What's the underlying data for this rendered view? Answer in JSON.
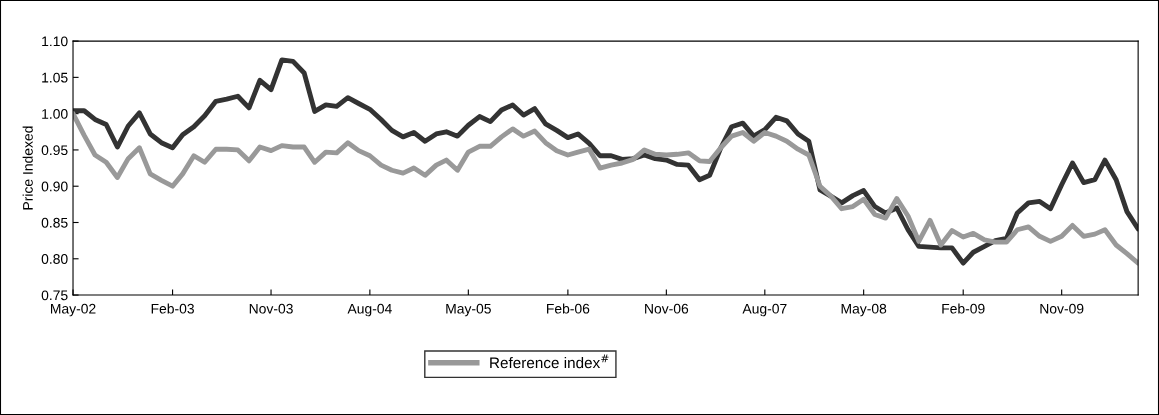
{
  "chart_data": {
    "type": "line",
    "ylabel": "Price Indexed",
    "x": [
      "2002-05",
      "2002-06",
      "2002-07",
      "2002-08",
      "2002-09",
      "2002-10",
      "2002-11",
      "2002-12",
      "2003-01",
      "2003-02",
      "2003-03",
      "2003-04",
      "2003-05",
      "2003-06",
      "2003-07",
      "2003-08",
      "2003-09",
      "2003-10",
      "2003-11",
      "2003-12",
      "2004-01",
      "2004-02",
      "2004-03",
      "2004-04",
      "2004-05",
      "2004-06",
      "2004-07",
      "2004-08",
      "2004-09",
      "2004-10",
      "2004-11",
      "2004-12",
      "2005-01",
      "2005-02",
      "2005-03",
      "2005-04",
      "2005-05",
      "2005-06",
      "2005-07",
      "2005-08",
      "2005-09",
      "2005-10",
      "2005-11",
      "2005-12",
      "2006-01",
      "2006-02",
      "2006-03",
      "2006-04",
      "2006-05",
      "2006-06",
      "2006-07",
      "2006-08",
      "2006-09",
      "2006-10",
      "2006-11",
      "2006-12",
      "2007-01",
      "2007-02",
      "2007-03",
      "2007-04",
      "2007-05",
      "2007-06",
      "2007-07",
      "2007-08",
      "2007-09",
      "2007-10",
      "2007-11",
      "2007-12",
      "2008-01",
      "2008-02",
      "2008-03",
      "2008-04",
      "2008-05",
      "2008-06",
      "2008-07",
      "2008-08",
      "2008-09",
      "2008-10",
      "2008-11",
      "2008-12",
      "2009-01",
      "2009-02",
      "2009-03",
      "2009-04",
      "2009-05",
      "2009-06",
      "2009-07",
      "2009-08",
      "2009-09",
      "2009-10",
      "2009-11",
      "2009-12",
      "2010-01",
      "2010-02",
      "2010-03",
      "2010-04",
      "2010-05",
      "2010-06"
    ],
    "series": [
      {
        "color": "#333333",
        "values": [
          1.004,
          1.004,
          0.992,
          0.985,
          0.954,
          0.983,
          1.001,
          0.972,
          0.96,
          0.953,
          0.971,
          0.982,
          0.997,
          1.017,
          1.02,
          1.024,
          1.008,
          1.046,
          1.033,
          1.074,
          1.072,
          1.056,
          1.003,
          1.012,
          1.01,
          1.022,
          1.014,
          1.006,
          0.992,
          0.977,
          0.968,
          0.974,
          0.962,
          0.972,
          0.975,
          0.969,
          0.984,
          0.996,
          0.989,
          1.005,
          1.012,
          0.998,
          1.007,
          0.986,
          0.977,
          0.967,
          0.972,
          0.959,
          0.942,
          0.942,
          0.937,
          0.938,
          0.943,
          0.938,
          0.936,
          0.93,
          0.929,
          0.909,
          0.915,
          0.953,
          0.982,
          0.987,
          0.969,
          0.978,
          0.995,
          0.99,
          0.972,
          0.962,
          0.895,
          0.886,
          0.877,
          0.887,
          0.894,
          0.872,
          0.863,
          0.87,
          0.84,
          0.817,
          0.816,
          0.815,
          0.815,
          0.794,
          0.809,
          0.817,
          0.825,
          0.828,
          0.863,
          0.877,
          0.879,
          0.869,
          0.902,
          0.932,
          0.905,
          0.909,
          0.936,
          0.909,
          0.865,
          0.841
        ]
      },
      {
        "name": "Reference index$^{#}$",
        "color": "#999999",
        "values": [
          1.0,
          0.97,
          0.943,
          0.933,
          0.912,
          0.938,
          0.953,
          0.917,
          0.908,
          0.9,
          0.917,
          0.942,
          0.933,
          0.951,
          0.951,
          0.95,
          0.935,
          0.954,
          0.949,
          0.956,
          0.954,
          0.954,
          0.933,
          0.947,
          0.946,
          0.96,
          0.949,
          0.942,
          0.929,
          0.922,
          0.918,
          0.925,
          0.915,
          0.929,
          0.936,
          0.922,
          0.947,
          0.955,
          0.955,
          0.968,
          0.979,
          0.969,
          0.976,
          0.96,
          0.949,
          0.943,
          0.947,
          0.951,
          0.925,
          0.929,
          0.932,
          0.937,
          0.95,
          0.944,
          0.943,
          0.944,
          0.946,
          0.935,
          0.934,
          0.953,
          0.969,
          0.974,
          0.962,
          0.974,
          0.969,
          0.962,
          0.951,
          0.943,
          0.9,
          0.886,
          0.869,
          0.872,
          0.882,
          0.861,
          0.856,
          0.883,
          0.859,
          0.824,
          0.853,
          0.819,
          0.839,
          0.83,
          0.835,
          0.826,
          0.823,
          0.823,
          0.84,
          0.844,
          0.831,
          0.824,
          0.831,
          0.846,
          0.831,
          0.834,
          0.84,
          0.819,
          0.807,
          0.794
        ]
      }
    ],
    "xlim": [
      "2002-05",
      "2010-06"
    ],
    "xticks": [
      {
        "value": "2002-05",
        "label": "May-02"
      },
      {
        "value": "2003-02",
        "label": "Feb-03"
      },
      {
        "value": "2003-11",
        "label": "Nov-03"
      },
      {
        "value": "2004-08",
        "label": "Aug-04"
      },
      {
        "value": "2005-05",
        "label": "May-05"
      },
      {
        "value": "2006-02",
        "label": "Feb-06"
      },
      {
        "value": "2006-11",
        "label": "Nov-06"
      },
      {
        "value": "2007-08",
        "label": "Aug-07"
      },
      {
        "value": "2008-05",
        "label": "May-08"
      },
      {
        "value": "2009-02",
        "label": "Feb-09"
      },
      {
        "value": "2009-11",
        "label": "Nov-09"
      }
    ],
    "ylim": [
      0.75,
      1.1
    ],
    "yticks": [
      {
        "value": 0.75,
        "label": "0.75"
      },
      {
        "value": 0.8,
        "label": "0.80"
      },
      {
        "value": 0.85,
        "label": "0.85"
      },
      {
        "value": 0.9,
        "label": "0.90"
      },
      {
        "value": 0.95,
        "label": "0.95"
      },
      {
        "value": 1.0,
        "label": "1.00"
      },
      {
        "value": 1.05,
        "label": "1.05"
      },
      {
        "value": 1.1,
        "label": "1.10"
      }
    ],
    "grid": false,
    "legend": "bottom"
  }
}
